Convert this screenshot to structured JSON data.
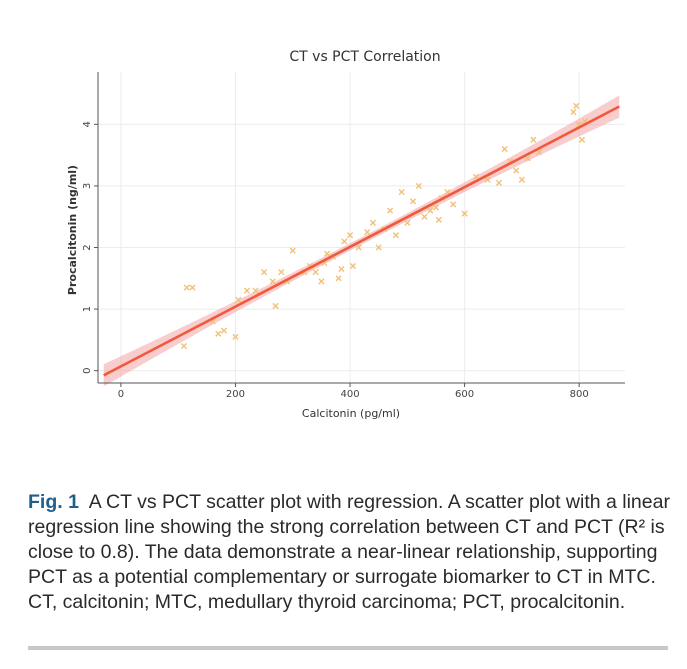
{
  "chart_data": {
    "type": "scatter",
    "title": "CT vs PCT Correlation",
    "xlabel": "Calcitonin (pg/ml)",
    "ylabel": "Procalcitonin (ng/ml)",
    "xlim": [
      -40,
      880
    ],
    "ylim": [
      -0.2,
      4.85
    ],
    "xticks": [
      0,
      200,
      400,
      600,
      800
    ],
    "yticks": [
      0,
      1,
      2,
      3,
      4
    ],
    "grid": true,
    "regression": {
      "x_start": -30,
      "x_end": 870,
      "intercept": 0.07,
      "slope": 0.00485
    },
    "x": [
      110,
      115,
      125,
      160,
      170,
      180,
      200,
      205,
      220,
      235,
      250,
      265,
      270,
      280,
      290,
      300,
      320,
      330,
      340,
      350,
      355,
      360,
      370,
      380,
      385,
      390,
      400,
      405,
      415,
      430,
      440,
      450,
      460,
      470,
      480,
      490,
      500,
      510,
      520,
      530,
      540,
      550,
      555,
      560,
      570,
      580,
      600,
      620,
      640,
      660,
      670,
      680,
      690,
      700,
      710,
      720,
      730,
      790,
      795,
      800,
      805,
      810
    ],
    "y": [
      0.4,
      1.35,
      1.35,
      0.8,
      0.6,
      0.65,
      0.55,
      1.15,
      1.3,
      1.3,
      1.6,
      1.45,
      1.05,
      1.6,
      1.45,
      1.95,
      1.6,
      1.7,
      1.6,
      1.45,
      1.75,
      1.9,
      1.85,
      1.5,
      1.65,
      2.1,
      2.2,
      1.7,
      2.0,
      2.25,
      2.4,
      2.0,
      2.3,
      2.6,
      2.2,
      2.9,
      2.4,
      2.75,
      3.0,
      2.5,
      2.6,
      2.65,
      2.45,
      2.8,
      2.9,
      2.7,
      2.55,
      3.15,
      3.1,
      3.05,
      3.6,
      3.4,
      3.25,
      3.1,
      3.45,
      3.75,
      3.55,
      4.2,
      4.3,
      4.0,
      3.75,
      4.05
    ]
  },
  "caption": {
    "label": "Fig. 1",
    "text": "A CT vs PCT scatter plot with regression. A scatter plot with a linear regression line showing the strong correlation between CT and PCT (R² is close to 0.8). The data demonstrate a near-linear relationship, supporting PCT as a potential complementary or surrogate biomarker to CT in MTC. CT, calcitonin; MTC, medullary thyroid carcinoma; PCT, procalcitonin."
  }
}
